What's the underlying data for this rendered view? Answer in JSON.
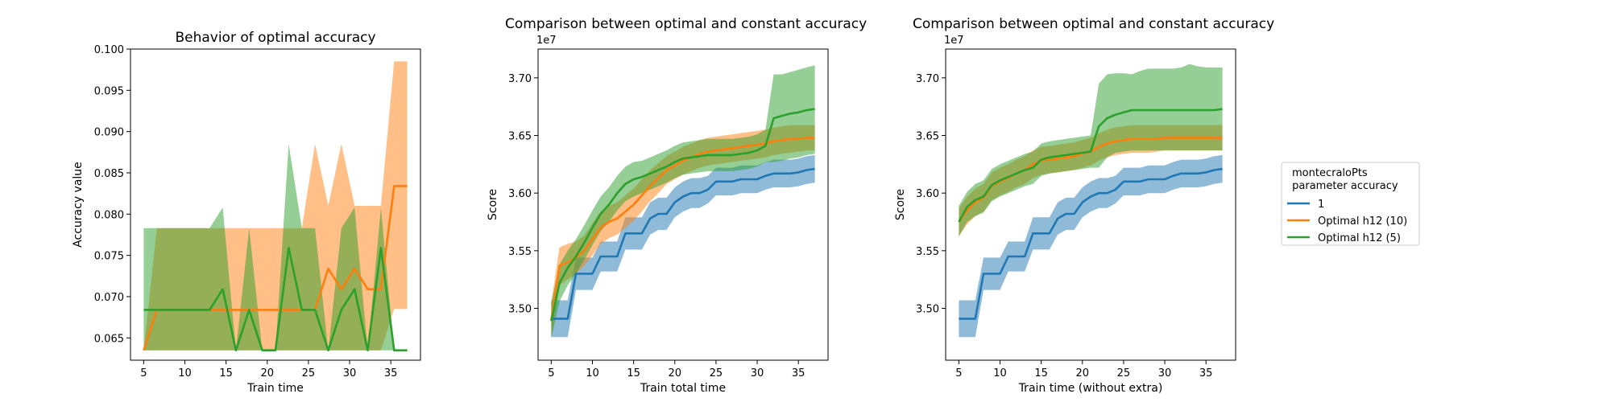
{
  "colors": {
    "series1": "#1f77b4",
    "series2": "#ff7f0e",
    "series3": "#2ca02c"
  },
  "legend": {
    "title_line1": "montecraloPts",
    "title_line2": " parameter accuracy",
    "placement": "right of figure",
    "entries": [
      "1",
      "Optimal h12 (10)",
      "Optimal h12 (5)"
    ]
  },
  "chart_data": [
    {
      "type": "line",
      "title": "Behavior of optimal accuracy",
      "xlabel": "Train time",
      "ylabel": "Accuracy value",
      "xlim": [
        3.4,
        38.6
      ],
      "ylim": [
        0.0623,
        0.1
      ],
      "xticks": [
        5,
        10,
        15,
        20,
        25,
        30,
        35
      ],
      "yticks": [
        0.065,
        0.07,
        0.075,
        0.08,
        0.085,
        0.09,
        0.095,
        0.1
      ],
      "ytick_labels": [
        "0.065",
        "0.070",
        "0.075",
        "0.080",
        "0.085",
        "0.090",
        "0.095",
        "0.100"
      ],
      "offset_text": "",
      "x": [
        5,
        6.6,
        8.2,
        9.8,
        11.4,
        13,
        14.6,
        16.2,
        17.8,
        19.4,
        21,
        22.6,
        24.2,
        25.8,
        27.4,
        29,
        30.6,
        32.2,
        33.8,
        35.4,
        37
      ],
      "series": [
        {
          "color": "#ff7f0e",
          "values": [
            0.0635,
            0.0684,
            0.0684,
            0.0684,
            0.0684,
            0.0684,
            0.0684,
            0.0684,
            0.0684,
            0.0684,
            0.0684,
            0.0684,
            0.0684,
            0.0684,
            0.0734,
            0.0709,
            0.0734,
            0.0709,
            0.0709,
            0.0834,
            0.0834
          ],
          "lower": [
            0.0635,
            0.0635,
            0.0635,
            0.0635,
            0.0635,
            0.0635,
            0.0635,
            0.0635,
            0.0635,
            0.0635,
            0.0635,
            0.0635,
            0.0635,
            0.0635,
            0.0635,
            0.0635,
            0.0635,
            0.0635,
            0.0635,
            0.0685,
            0.0685
          ],
          "upper": [
            0.0635,
            0.0783,
            0.0783,
            0.0783,
            0.0783,
            0.0783,
            0.0783,
            0.0783,
            0.0783,
            0.0783,
            0.0783,
            0.0783,
            0.0783,
            0.0885,
            0.081,
            0.0885,
            0.081,
            0.081,
            0.081,
            0.0985,
            0.0985
          ]
        },
        {
          "color": "#2ca02c",
          "values": [
            0.0684,
            0.0684,
            0.0684,
            0.0684,
            0.0684,
            0.0684,
            0.0709,
            0.0635,
            0.0684,
            0.0635,
            0.0635,
            0.0759,
            0.0684,
            0.0684,
            0.0635,
            0.0684,
            0.0709,
            0.0635,
            0.0759,
            0.0635,
            0.0635
          ],
          "lower": [
            0.0635,
            0.0635,
            0.0635,
            0.0635,
            0.0635,
            0.0635,
            0.0635,
            0.0635,
            0.0635,
            0.0635,
            0.0635,
            0.0635,
            0.0635,
            0.0635,
            0.0635,
            0.0635,
            0.0635,
            0.0635,
            0.0635,
            0.0635,
            0.0635
          ],
          "upper": [
            0.0783,
            0.0783,
            0.0783,
            0.0783,
            0.0783,
            0.0783,
            0.0808,
            0.0635,
            0.0783,
            0.0635,
            0.0635,
            0.0885,
            0.0783,
            0.0783,
            0.0635,
            0.0783,
            0.0808,
            0.0635,
            0.0808,
            0.0635,
            0.0635
          ]
        }
      ]
    },
    {
      "type": "line",
      "title": "Comparison between optimal and constant accuracy",
      "xlabel": "Train total time",
      "ylabel": "Score",
      "xlim": [
        3.4,
        38.6
      ],
      "ylim": [
        3.455,
        3.725
      ],
      "xticks": [
        5,
        10,
        15,
        20,
        25,
        30,
        35
      ],
      "yticks": [
        3.5,
        3.55,
        3.6,
        3.65,
        3.7
      ],
      "ytick_labels": [
        "3.50",
        "3.55",
        "3.60",
        "3.65",
        "3.70"
      ],
      "offset_text": "1e7",
      "x": [
        5,
        6,
        7,
        8,
        9,
        10,
        11,
        12,
        13,
        14,
        15,
        16,
        17,
        18,
        19,
        20,
        21,
        22,
        23,
        24,
        25,
        26,
        27,
        28,
        29,
        30,
        31,
        32,
        33,
        34,
        35,
        36,
        37
      ],
      "series": [
        {
          "color": "#1f77b4",
          "values": [
            3.491,
            3.491,
            3.491,
            3.53,
            3.53,
            3.53,
            3.545,
            3.545,
            3.545,
            3.565,
            3.565,
            3.565,
            3.578,
            3.582,
            3.582,
            3.592,
            3.597,
            3.6,
            3.6,
            3.603,
            3.61,
            3.61,
            3.61,
            3.612,
            3.612,
            3.612,
            3.615,
            3.617,
            3.617,
            3.617,
            3.618,
            3.62,
            3.621
          ],
          "lower": [
            3.475,
            3.475,
            3.475,
            3.516,
            3.516,
            3.516,
            3.532,
            3.532,
            3.532,
            3.551,
            3.551,
            3.551,
            3.564,
            3.568,
            3.568,
            3.579,
            3.584,
            3.587,
            3.587,
            3.591,
            3.598,
            3.598,
            3.598,
            3.6,
            3.6,
            3.6,
            3.603,
            3.605,
            3.605,
            3.605,
            3.606,
            3.608,
            3.609
          ],
          "upper": [
            3.507,
            3.507,
            3.507,
            3.544,
            3.544,
            3.544,
            3.558,
            3.558,
            3.558,
            3.579,
            3.579,
            3.579,
            3.592,
            3.596,
            3.596,
            3.605,
            3.61,
            3.613,
            3.613,
            3.615,
            3.622,
            3.622,
            3.622,
            3.624,
            3.624,
            3.624,
            3.627,
            3.629,
            3.629,
            3.629,
            3.63,
            3.632,
            3.633
          ]
        },
        {
          "color": "#ff7f0e",
          "values": [
            3.49,
            3.537,
            3.54,
            3.544,
            3.55,
            3.56,
            3.57,
            3.575,
            3.578,
            3.584,
            3.59,
            3.598,
            3.606,
            3.613,
            3.62,
            3.624,
            3.628,
            3.631,
            3.634,
            3.636,
            3.637,
            3.638,
            3.639,
            3.64,
            3.641,
            3.642,
            3.643,
            3.645,
            3.646,
            3.647,
            3.647,
            3.648,
            3.648
          ],
          "lower": [
            3.475,
            3.52,
            3.525,
            3.53,
            3.537,
            3.546,
            3.556,
            3.561,
            3.564,
            3.57,
            3.576,
            3.584,
            3.593,
            3.6,
            3.608,
            3.612,
            3.616,
            3.619,
            3.622,
            3.624,
            3.625,
            3.626,
            3.627,
            3.628,
            3.629,
            3.63,
            3.631,
            3.633,
            3.634,
            3.635,
            3.636,
            3.637,
            3.637
          ],
          "upper": [
            3.505,
            3.553,
            3.556,
            3.558,
            3.563,
            3.574,
            3.584,
            3.589,
            3.592,
            3.598,
            3.604,
            3.612,
            3.62,
            3.626,
            3.632,
            3.636,
            3.64,
            3.643,
            3.646,
            3.648,
            3.649,
            3.65,
            3.651,
            3.652,
            3.653,
            3.654,
            3.655,
            3.657,
            3.658,
            3.659,
            3.659,
            3.659,
            3.659
          ]
        },
        {
          "color": "#2ca02c",
          "values": [
            3.489,
            3.522,
            3.535,
            3.545,
            3.557,
            3.57,
            3.582,
            3.59,
            3.6,
            3.608,
            3.612,
            3.614,
            3.617,
            3.62,
            3.623,
            3.627,
            3.63,
            3.631,
            3.632,
            3.633,
            3.633,
            3.633,
            3.633,
            3.634,
            3.635,
            3.637,
            3.641,
            3.665,
            3.667,
            3.669,
            3.67,
            3.672,
            3.673
          ],
          "lower": [
            3.474,
            3.506,
            3.52,
            3.53,
            3.542,
            3.555,
            3.567,
            3.575,
            3.585,
            3.593,
            3.597,
            3.6,
            3.603,
            3.606,
            3.609,
            3.613,
            3.616,
            3.617,
            3.618,
            3.619,
            3.619,
            3.619,
            3.619,
            3.62,
            3.621,
            3.623,
            3.627,
            3.627,
            3.628,
            3.63,
            3.631,
            3.633,
            3.634
          ],
          "upper": [
            3.505,
            3.538,
            3.55,
            3.56,
            3.572,
            3.585,
            3.597,
            3.605,
            3.615,
            3.623,
            3.627,
            3.628,
            3.631,
            3.634,
            3.637,
            3.641,
            3.644,
            3.645,
            3.646,
            3.647,
            3.647,
            3.647,
            3.647,
            3.648,
            3.649,
            3.651,
            3.655,
            3.703,
            3.703,
            3.705,
            3.707,
            3.709,
            3.711
          ]
        }
      ]
    },
    {
      "type": "line",
      "title": "Comparison between optimal and constant accuracy",
      "xlabel": "Train time (without extra)",
      "ylabel": "Score",
      "xlim": [
        3.4,
        38.6
      ],
      "ylim": [
        3.455,
        3.725
      ],
      "xticks": [
        5,
        10,
        15,
        20,
        25,
        30,
        35
      ],
      "yticks": [
        3.5,
        3.55,
        3.6,
        3.65,
        3.7
      ],
      "ytick_labels": [
        "3.50",
        "3.55",
        "3.60",
        "3.65",
        "3.70"
      ],
      "offset_text": "1e7",
      "x": [
        5,
        6,
        7,
        8,
        9,
        10,
        11,
        12,
        13,
        14,
        15,
        16,
        17,
        18,
        19,
        20,
        21,
        22,
        23,
        24,
        25,
        26,
        27,
        28,
        29,
        30,
        31,
        32,
        33,
        34,
        35,
        36,
        37
      ],
      "series": [
        {
          "color": "#1f77b4",
          "values": [
            3.491,
            3.491,
            3.491,
            3.53,
            3.53,
            3.53,
            3.545,
            3.545,
            3.545,
            3.565,
            3.565,
            3.565,
            3.578,
            3.582,
            3.582,
            3.592,
            3.597,
            3.6,
            3.6,
            3.603,
            3.61,
            3.61,
            3.61,
            3.612,
            3.612,
            3.612,
            3.615,
            3.617,
            3.617,
            3.617,
            3.618,
            3.62,
            3.621
          ],
          "lower": [
            3.475,
            3.475,
            3.475,
            3.516,
            3.516,
            3.516,
            3.532,
            3.532,
            3.532,
            3.551,
            3.551,
            3.551,
            3.564,
            3.568,
            3.568,
            3.579,
            3.584,
            3.587,
            3.587,
            3.591,
            3.598,
            3.598,
            3.598,
            3.6,
            3.6,
            3.6,
            3.603,
            3.605,
            3.605,
            3.605,
            3.606,
            3.608,
            3.609
          ],
          "upper": [
            3.507,
            3.507,
            3.507,
            3.544,
            3.544,
            3.544,
            3.558,
            3.558,
            3.558,
            3.579,
            3.579,
            3.579,
            3.592,
            3.596,
            3.596,
            3.605,
            3.61,
            3.613,
            3.613,
            3.615,
            3.622,
            3.622,
            3.622,
            3.624,
            3.624,
            3.624,
            3.627,
            3.629,
            3.629,
            3.629,
            3.63,
            3.632,
            3.633
          ]
        },
        {
          "color": "#ff7f0e",
          "values": [
            3.575,
            3.585,
            3.592,
            3.596,
            3.606,
            3.61,
            3.613,
            3.617,
            3.62,
            3.625,
            3.628,
            3.629,
            3.63,
            3.631,
            3.632,
            3.634,
            3.636,
            3.64,
            3.643,
            3.645,
            3.646,
            3.647,
            3.647,
            3.647,
            3.647,
            3.648,
            3.648,
            3.648,
            3.648,
            3.648,
            3.648,
            3.648,
            3.648
          ],
          "lower": [
            3.563,
            3.573,
            3.58,
            3.584,
            3.594,
            3.598,
            3.601,
            3.605,
            3.608,
            3.613,
            3.616,
            3.617,
            3.618,
            3.619,
            3.62,
            3.622,
            3.624,
            3.628,
            3.631,
            3.633,
            3.634,
            3.635,
            3.635,
            3.635,
            3.636,
            3.637,
            3.637,
            3.637,
            3.637,
            3.637,
            3.637,
            3.637,
            3.637
          ],
          "upper": [
            3.587,
            3.597,
            3.604,
            3.608,
            3.618,
            3.622,
            3.625,
            3.629,
            3.632,
            3.637,
            3.64,
            3.641,
            3.642,
            3.643,
            3.644,
            3.646,
            3.648,
            3.652,
            3.655,
            3.657,
            3.658,
            3.659,
            3.659,
            3.659,
            3.659,
            3.659,
            3.659,
            3.659,
            3.659,
            3.659,
            3.659,
            3.659,
            3.659
          ]
        },
        {
          "color": "#2ca02c",
          "values": [
            3.575,
            3.588,
            3.594,
            3.597,
            3.607,
            3.611,
            3.614,
            3.617,
            3.62,
            3.622,
            3.629,
            3.631,
            3.632,
            3.633,
            3.634,
            3.635,
            3.636,
            3.658,
            3.665,
            3.668,
            3.67,
            3.672,
            3.672,
            3.672,
            3.672,
            3.672,
            3.672,
            3.672,
            3.672,
            3.672,
            3.672,
            3.672,
            3.673
          ],
          "lower": [
            3.562,
            3.575,
            3.58,
            3.583,
            3.593,
            3.597,
            3.6,
            3.603,
            3.606,
            3.608,
            3.615,
            3.617,
            3.618,
            3.619,
            3.62,
            3.621,
            3.622,
            3.622,
            3.631,
            3.635,
            3.636,
            3.637,
            3.637,
            3.637,
            3.637,
            3.637,
            3.637,
            3.637,
            3.637,
            3.637,
            3.637,
            3.637,
            3.637
          ],
          "upper": [
            3.589,
            3.601,
            3.608,
            3.611,
            3.621,
            3.625,
            3.628,
            3.631,
            3.634,
            3.636,
            3.643,
            3.645,
            3.646,
            3.647,
            3.648,
            3.649,
            3.65,
            3.695,
            3.703,
            3.704,
            3.704,
            3.703,
            3.706,
            3.708,
            3.708,
            3.708,
            3.708,
            3.709,
            3.712,
            3.71,
            3.709,
            3.709,
            3.709
          ]
        }
      ]
    }
  ]
}
